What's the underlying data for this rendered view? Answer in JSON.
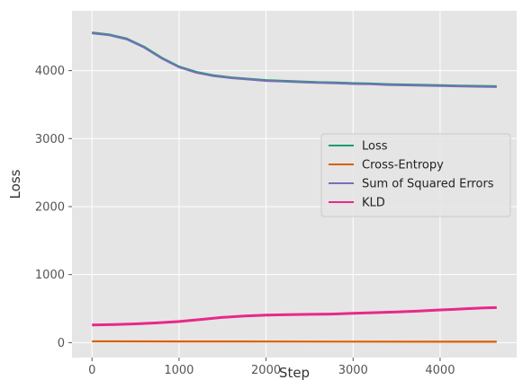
{
  "chart_data": {
    "type": "line",
    "title": "",
    "xlabel": "Step",
    "ylabel": "Loss",
    "xlim": [
      -230,
      4880
    ],
    "ylim": [
      -220,
      4880
    ],
    "xticks": [
      0,
      1000,
      2000,
      3000,
      4000
    ],
    "yticks": [
      0,
      1000,
      2000,
      3000,
      4000
    ],
    "grid": true,
    "legend_position": "center-right",
    "series": [
      {
        "name": "Loss",
        "color": "#1b9e77",
        "x": [
          0,
          200,
          400,
          600,
          800,
          1000,
          1200,
          1400,
          1600,
          1800,
          2000,
          2200,
          2400,
          2600,
          2800,
          3000,
          3200,
          3400,
          3600,
          3800,
          4000,
          4200,
          4400,
          4650
        ],
        "y": [
          4560,
          4530,
          4470,
          4350,
          4190,
          4060,
          3980,
          3930,
          3900,
          3880,
          3860,
          3850,
          3840,
          3830,
          3825,
          3815,
          3810,
          3800,
          3795,
          3790,
          3785,
          3780,
          3775,
          3770
        ]
      },
      {
        "name": "Cross-Entropy",
        "color": "#d95f02",
        "x": [
          0,
          1000,
          2000,
          3000,
          4000,
          4650
        ],
        "y": [
          18,
          16,
          15,
          14,
          13,
          12
        ]
      },
      {
        "name": "Sum of Squared Errors",
        "color": "#7570b3",
        "x": [
          0,
          200,
          400,
          600,
          800,
          1000,
          1200,
          1400,
          1600,
          1800,
          2000,
          2200,
          2400,
          2600,
          2800,
          3000,
          3200,
          3400,
          3600,
          3800,
          4000,
          4200,
          4400,
          4650
        ],
        "y": [
          4550,
          4520,
          4460,
          4340,
          4180,
          4050,
          3970,
          3920,
          3890,
          3870,
          3850,
          3840,
          3830,
          3820,
          3815,
          3805,
          3800,
          3790,
          3785,
          3780,
          3775,
          3770,
          3765,
          3760
        ]
      },
      {
        "name": "KLD",
        "color": "#e7298a",
        "x": [
          0,
          250,
          500,
          750,
          1000,
          1250,
          1500,
          1750,
          2000,
          2250,
          2500,
          2750,
          3000,
          3250,
          3500,
          3750,
          4000,
          4250,
          4500,
          4650
        ],
        "y": [
          260,
          265,
          275,
          290,
          310,
          340,
          370,
          390,
          405,
          410,
          415,
          420,
          430,
          440,
          450,
          465,
          480,
          495,
          510,
          515
        ]
      }
    ]
  }
}
